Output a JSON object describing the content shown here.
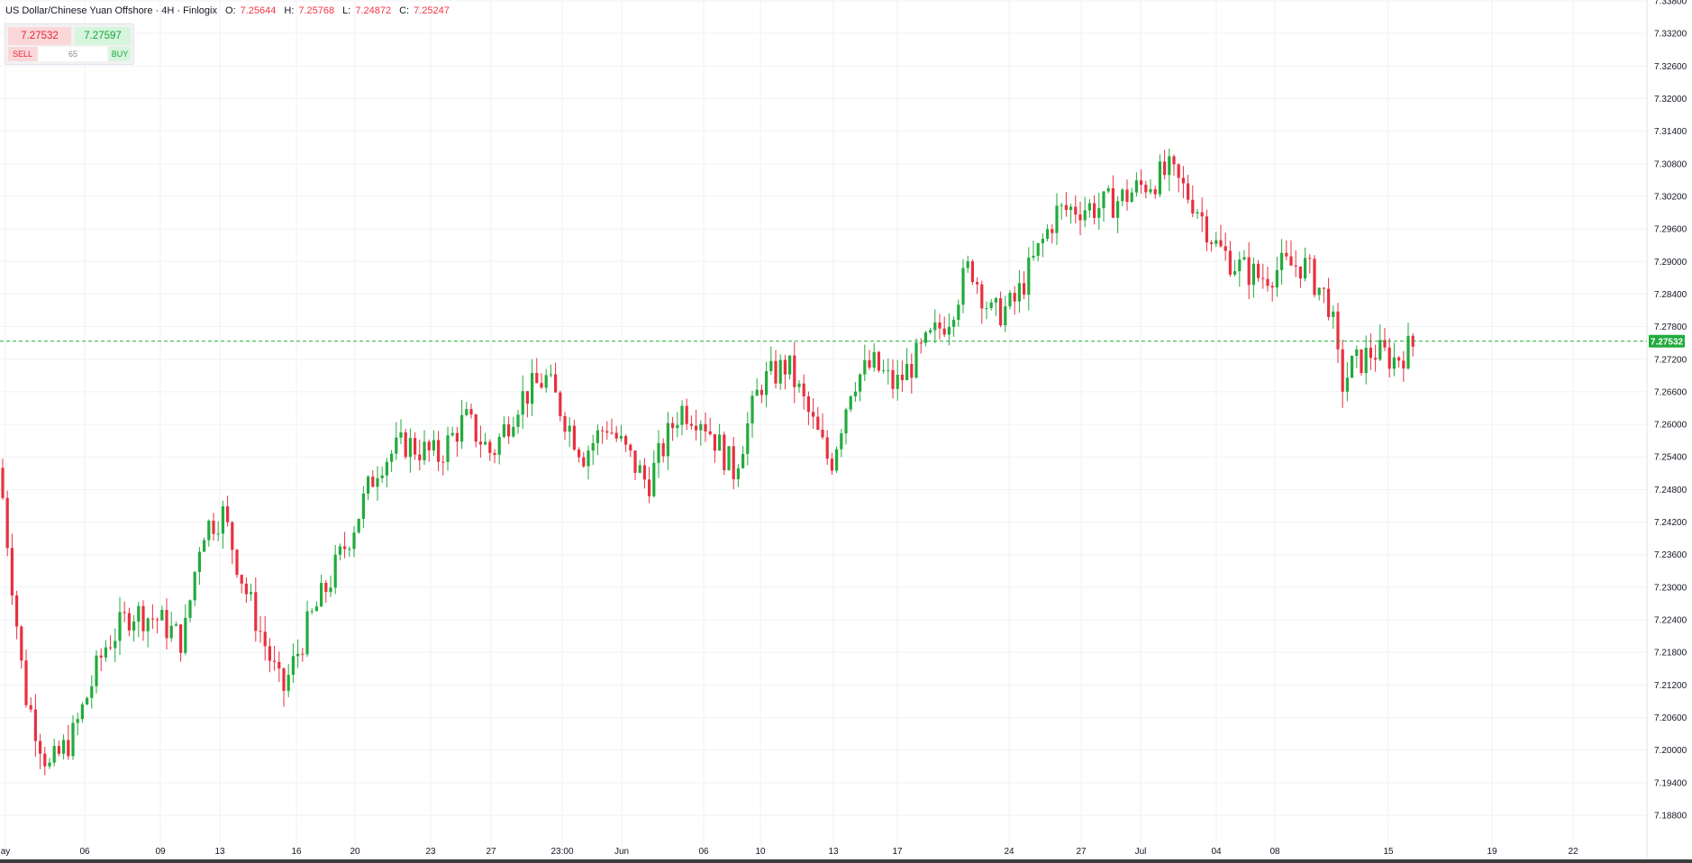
{
  "header": {
    "symbol": "US Dollar/Chinese Yuan Offshore · 4H · Finlogix",
    "open_label": "O:",
    "open": "7.25644",
    "high_label": "H:",
    "high": "7.25768",
    "low_label": "L:",
    "low": "7.24872",
    "close_label": "C:",
    "close": "7.25247"
  },
  "trade_panel": {
    "sell_price": "7.27532",
    "buy_price": "7.27597",
    "sell_label": "SELL",
    "spread": "65",
    "buy_label": "BUY"
  },
  "colors": {
    "up": "#22ab3c",
    "down": "#e8303f",
    "grid": "#f0f2f5",
    "last_price": "#22ab3c"
  },
  "chart_data": {
    "type": "candlestick",
    "y_ticks": [
      "7.33800",
      "7.33200",
      "7.32600",
      "7.32000",
      "7.31400",
      "7.30800",
      "7.30200",
      "7.29600",
      "7.29000",
      "7.28400",
      "7.27800",
      "7.27200",
      "7.26600",
      "7.26000",
      "7.25400",
      "7.24800",
      "7.24200",
      "7.23600",
      "7.23000",
      "7.22400",
      "7.21800",
      "7.21200",
      "7.20600",
      "7.20000",
      "7.19400",
      "7.18800"
    ],
    "x_ticks": [
      "ay",
      "06",
      "09",
      "13",
      "16",
      "20",
      "23",
      "27",
      "23:00",
      "Jun",
      "06",
      "10",
      "13",
      "17",
      "24",
      "27",
      "Jul",
      "04",
      "08",
      "15",
      "19",
      "22"
    ],
    "last_price": "7.27532",
    "grid": true,
    "anchors": [
      [
        7.252,
        7.241
      ],
      [
        7.23,
        7.192
      ],
      [
        7.215,
        7.178
      ],
      [
        7.205,
        7.2
      ],
      [
        7.22,
        7.218
      ],
      [
        7.233,
        7.218
      ],
      [
        7.228,
        7.22
      ],
      [
        7.222,
        7.218
      ],
      [
        7.243,
        7.238
      ],
      [
        7.245,
        7.242
      ],
      [
        7.232,
        7.228
      ],
      [
        7.213,
        7.208
      ],
      [
        7.225,
        7.222
      ],
      [
        7.238,
        7.225
      ],
      [
        7.244,
        7.242
      ],
      [
        7.254,
        7.252
      ],
      [
        7.258,
        7.255
      ],
      [
        7.256,
        7.252
      ],
      [
        7.262,
        7.26
      ],
      [
        7.256,
        7.253
      ],
      [
        7.266,
        7.263
      ],
      [
        7.272,
        7.265
      ],
      [
        7.255,
        7.254
      ],
      [
        7.262,
        7.258
      ],
      [
        7.25,
        7.248
      ],
      [
        7.264,
        7.262
      ],
      [
        7.263,
        7.26
      ],
      [
        7.253,
        7.25
      ],
      [
        7.27,
        7.265
      ],
      [
        7.272,
        7.27
      ],
      [
        7.253,
        7.252
      ],
      [
        7.27,
        7.266
      ],
      [
        7.272,
        7.27
      ],
      [
        7.268,
        7.266
      ],
      [
        7.275,
        7.272
      ],
      [
        7.282,
        7.278
      ],
      [
        7.291,
        7.288
      ],
      [
        7.282,
        7.278
      ],
      [
        7.284,
        7.28
      ],
      [
        7.3,
        7.298
      ],
      [
        7.302,
        7.298
      ],
      [
        7.302,
        7.298
      ],
      [
        7.303,
        7.3
      ],
      [
        7.305,
        7.303
      ],
      [
        7.308,
        7.305
      ],
      [
        7.302,
        7.299
      ],
      [
        7.294,
        7.291
      ],
      [
        7.29,
        7.288
      ],
      [
        7.289,
        7.285
      ],
      [
        7.29,
        7.288
      ],
      [
        7.291,
        7.288
      ],
      [
        7.284,
        7.28
      ],
      [
        7.266,
        7.268
      ],
      [
        7.271,
        7.27
      ],
      [
        7.275,
        7.272
      ],
      [
        7.272,
        7.272
      ],
      [
        7.275,
        7.275
      ]
    ],
    "anchor_x": [
      0,
      20,
      43,
      65,
      95,
      120,
      145,
      168,
      185,
      205,
      225,
      260,
      285,
      305,
      330,
      350,
      375,
      405,
      430,
      455,
      480,
      505,
      540,
      562,
      600,
      630,
      650,
      680,
      705,
      730,
      770,
      790,
      810,
      830,
      855,
      880,
      900,
      920,
      940,
      980,
      1000,
      1020,
      1040,
      1060,
      1085,
      1110,
      1130,
      1150,
      1170,
      1190,
      1210,
      1235,
      1245,
      1255,
      1275,
      1295,
      1315
    ]
  }
}
